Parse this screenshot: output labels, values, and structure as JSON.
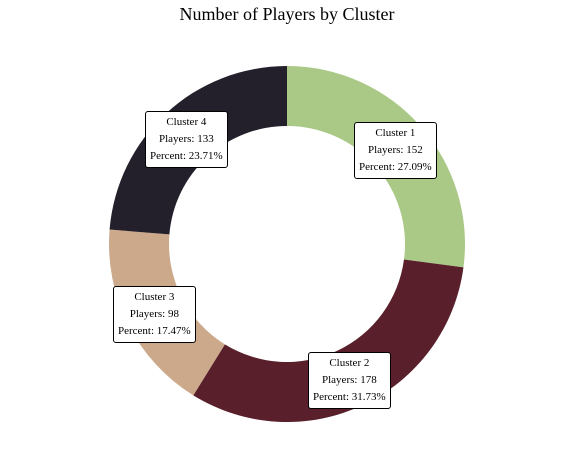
{
  "chart_data": {
    "type": "pie",
    "style": "donut",
    "title": "Number of Players by Cluster",
    "start": "top",
    "direction": "clockwise",
    "slices": [
      {
        "label": "Cluster 1",
        "value": 152,
        "percent_label": "Percent: 27.09%",
        "value_label": "Players: 152",
        "color": "#aac987"
      },
      {
        "label": "Cluster 2",
        "value": 178,
        "percent_label": "Percent: 31.73%",
        "value_label": "Players: 178",
        "color": "#59202b"
      },
      {
        "label": "Cluster 3",
        "value": 98,
        "percent_label": "Percent: 17.47%",
        "value_label": "Players: 98",
        "color": "#cca98b"
      },
      {
        "label": "Cluster 4",
        "value": 133,
        "percent_label": "Percent: 23.71%",
        "value_label": "Players: 133",
        "color": "#231f2b"
      }
    ]
  }
}
